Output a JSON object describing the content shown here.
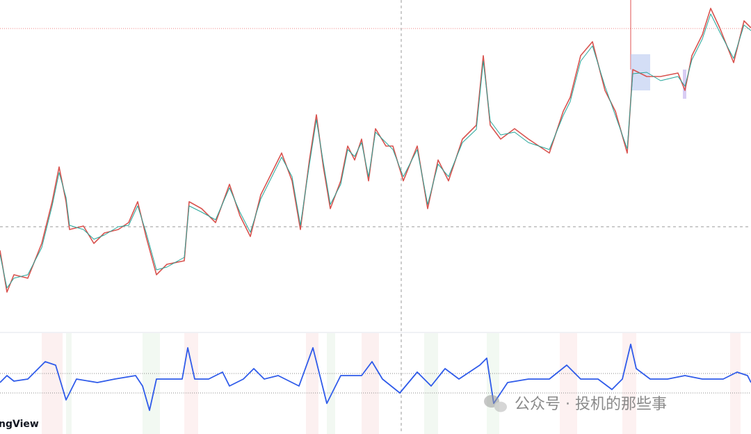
{
  "logo": "ngView",
  "watermark": "公众号 · 投机的那些事"
}
